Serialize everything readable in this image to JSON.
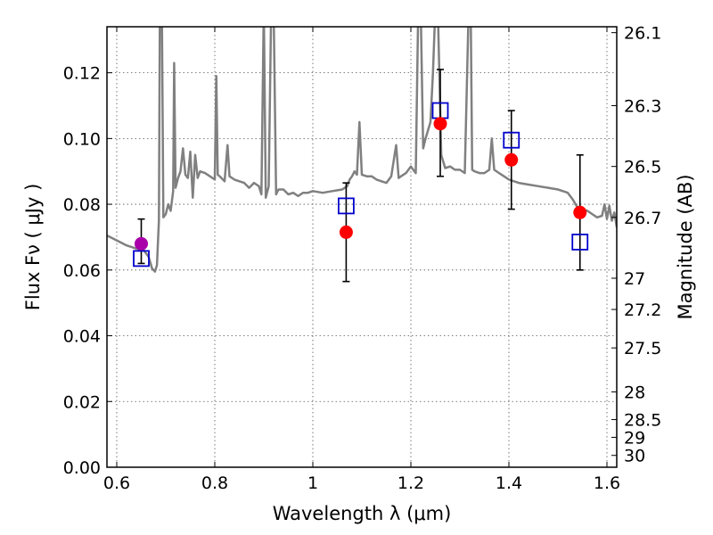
{
  "chart_data": {
    "type": "scatter",
    "xlabel": "Wavelength  λ (μm)",
    "ylabel": "Flux  Fν  ( μJy )",
    "ylabel_right": "Magnitude (AB)",
    "xlim": [
      0.58,
      1.62
    ],
    "ylim": [
      0.0,
      0.134
    ],
    "x_ticks": [
      {
        "value": 0.6,
        "label": "0.6"
      },
      {
        "value": 0.8,
        "label": "0.8"
      },
      {
        "value": 1.0,
        "label": "1"
      },
      {
        "value": 1.2,
        "label": "1.2"
      },
      {
        "value": 1.4,
        "label": "1.4"
      },
      {
        "value": 1.6,
        "label": "1.6"
      }
    ],
    "y_ticks": [
      {
        "value": 0.0,
        "label": "0.00"
      },
      {
        "value": 0.02,
        "label": "0.02"
      },
      {
        "value": 0.04,
        "label": "0.04"
      },
      {
        "value": 0.06,
        "label": "0.06"
      },
      {
        "value": 0.08,
        "label": "0.08"
      },
      {
        "value": 0.1,
        "label": "0.10"
      },
      {
        "value": 0.12,
        "label": "0.12"
      }
    ],
    "right_ticks": [
      {
        "label": "26.1",
        "flux": 0.1322
      },
      {
        "label": "26.3",
        "flux": 0.11
      },
      {
        "label": "26.5",
        "flux": 0.0915
      },
      {
        "label": "26.7",
        "flux": 0.076
      },
      {
        "label": "27",
        "flux": 0.0575
      },
      {
        "label": "27.2",
        "flux": 0.048
      },
      {
        "label": "27.5",
        "flux": 0.0363
      },
      {
        "label": "28",
        "flux": 0.0229
      },
      {
        "label": "28.5",
        "flux": 0.0145
      },
      {
        "label": "29",
        "flux": 0.0091
      },
      {
        "label": "30",
        "flux": 0.0036
      }
    ],
    "grid": true,
    "colors": {
      "spectrum": "#808080",
      "observed": "#ff0000",
      "observed_first": "#aa00aa",
      "model": "#0000cc",
      "errorbar": "#000000",
      "grid": "#555555"
    },
    "observed": [
      {
        "x": 0.65,
        "y": 0.068,
        "err_low": 0.062,
        "err_high": 0.0755
      },
      {
        "x": 1.068,
        "y": 0.0715,
        "err_low": 0.0565,
        "err_high": 0.0865
      },
      {
        "x": 1.26,
        "y": 0.1045,
        "err_low": 0.0885,
        "err_high": 0.121
      },
      {
        "x": 1.405,
        "y": 0.0935,
        "err_low": 0.0785,
        "err_high": 0.1085
      },
      {
        "x": 1.545,
        "y": 0.0775,
        "err_low": 0.06,
        "err_high": 0.095
      }
    ],
    "model": [
      {
        "x": 0.65,
        "y": 0.0635
      },
      {
        "x": 1.068,
        "y": 0.0795
      },
      {
        "x": 1.26,
        "y": 0.1085
      },
      {
        "x": 1.405,
        "y": 0.0995
      },
      {
        "x": 1.545,
        "y": 0.0685
      }
    ],
    "spectrum": [
      [
        0.58,
        0.0705
      ],
      [
        0.6,
        0.069
      ],
      [
        0.62,
        0.0675
      ],
      [
        0.64,
        0.0665
      ],
      [
        0.655,
        0.066
      ],
      [
        0.665,
        0.064
      ],
      [
        0.672,
        0.0605
      ],
      [
        0.678,
        0.0595
      ],
      [
        0.682,
        0.0615
      ],
      [
        0.686,
        0.075
      ],
      [
        0.688,
        0.14
      ],
      [
        0.692,
        0.14
      ],
      [
        0.695,
        0.076
      ],
      [
        0.7,
        0.077
      ],
      [
        0.705,
        0.08
      ],
      [
        0.71,
        0.078
      ],
      [
        0.715,
        0.084
      ],
      [
        0.717,
        0.123
      ],
      [
        0.72,
        0.085
      ],
      [
        0.725,
        0.088
      ],
      [
        0.73,
        0.09
      ],
      [
        0.735,
        0.097
      ],
      [
        0.74,
        0.089
      ],
      [
        0.745,
        0.088
      ],
      [
        0.75,
        0.096
      ],
      [
        0.755,
        0.082
      ],
      [
        0.76,
        0.095
      ],
      [
        0.765,
        0.088
      ],
      [
        0.77,
        0.09
      ],
      [
        0.78,
        0.0895
      ],
      [
        0.79,
        0.0885
      ],
      [
        0.8,
        0.0875
      ],
      [
        0.803,
        0.119
      ],
      [
        0.806,
        0.089
      ],
      [
        0.81,
        0.0885
      ],
      [
        0.82,
        0.087
      ],
      [
        0.826,
        0.098
      ],
      [
        0.83,
        0.0885
      ],
      [
        0.84,
        0.0875
      ],
      [
        0.85,
        0.087
      ],
      [
        0.86,
        0.0865
      ],
      [
        0.87,
        0.085
      ],
      [
        0.88,
        0.0865
      ],
      [
        0.89,
        0.0855
      ],
      [
        0.895,
        0.083
      ],
      [
        0.9,
        0.14
      ],
      [
        0.904,
        0.082
      ],
      [
        0.91,
        0.0855
      ],
      [
        0.915,
        0.14
      ],
      [
        0.92,
        0.14
      ],
      [
        0.925,
        0.083
      ],
      [
        0.93,
        0.0845
      ],
      [
        0.94,
        0.0845
      ],
      [
        0.95,
        0.083
      ],
      [
        0.96,
        0.0835
      ],
      [
        0.97,
        0.0825
      ],
      [
        0.98,
        0.0835
      ],
      [
        0.99,
        0.0835
      ],
      [
        1.0,
        0.084
      ],
      [
        1.02,
        0.0835
      ],
      [
        1.04,
        0.084
      ],
      [
        1.06,
        0.0845
      ],
      [
        1.07,
        0.0855
      ],
      [
        1.075,
        0.0875
      ],
      [
        1.08,
        0.0885
      ],
      [
        1.085,
        0.09
      ],
      [
        1.09,
        0.089
      ],
      [
        1.095,
        0.105
      ],
      [
        1.1,
        0.089
      ],
      [
        1.11,
        0.0885
      ],
      [
        1.12,
        0.0885
      ],
      [
        1.13,
        0.0875
      ],
      [
        1.14,
        0.087
      ],
      [
        1.15,
        0.0865
      ],
      [
        1.16,
        0.0885
      ],
      [
        1.17,
        0.098
      ],
      [
        1.175,
        0.088
      ],
      [
        1.18,
        0.0885
      ],
      [
        1.19,
        0.0895
      ],
      [
        1.2,
        0.0915
      ],
      [
        1.21,
        0.0895
      ],
      [
        1.215,
        0.14
      ],
      [
        1.22,
        0.14
      ],
      [
        1.225,
        0.097
      ],
      [
        1.23,
        0.1
      ],
      [
        1.24,
        0.105
      ],
      [
        1.245,
        0.12
      ],
      [
        1.25,
        0.14
      ],
      [
        1.255,
        0.14
      ],
      [
        1.262,
        0.095
      ],
      [
        1.27,
        0.091
      ],
      [
        1.28,
        0.0915
      ],
      [
        1.29,
        0.0905
      ],
      [
        1.3,
        0.0905
      ],
      [
        1.31,
        0.0895
      ],
      [
        1.318,
        0.14
      ],
      [
        1.322,
        0.14
      ],
      [
        1.325,
        0.0905
      ],
      [
        1.33,
        0.09
      ],
      [
        1.34,
        0.0895
      ],
      [
        1.35,
        0.0895
      ],
      [
        1.36,
        0.0905
      ],
      [
        1.365,
        0.1
      ],
      [
        1.37,
        0.0905
      ],
      [
        1.38,
        0.0895
      ],
      [
        1.39,
        0.0885
      ],
      [
        1.4,
        0.0875
      ],
      [
        1.42,
        0.0865
      ],
      [
        1.44,
        0.086
      ],
      [
        1.46,
        0.0855
      ],
      [
        1.48,
        0.085
      ],
      [
        1.5,
        0.0845
      ],
      [
        1.51,
        0.084
      ],
      [
        1.52,
        0.0835
      ],
      [
        1.53,
        0.0815
      ],
      [
        1.54,
        0.079
      ],
      [
        1.55,
        0.0785
      ],
      [
        1.56,
        0.078
      ],
      [
        1.57,
        0.077
      ],
      [
        1.58,
        0.076
      ],
      [
        1.59,
        0.0765
      ],
      [
        1.595,
        0.08
      ],
      [
        1.6,
        0.0755
      ],
      [
        1.605,
        0.0795
      ],
      [
        1.61,
        0.075
      ],
      [
        1.615,
        0.0775
      ],
      [
        1.62,
        0.073
      ]
    ]
  }
}
